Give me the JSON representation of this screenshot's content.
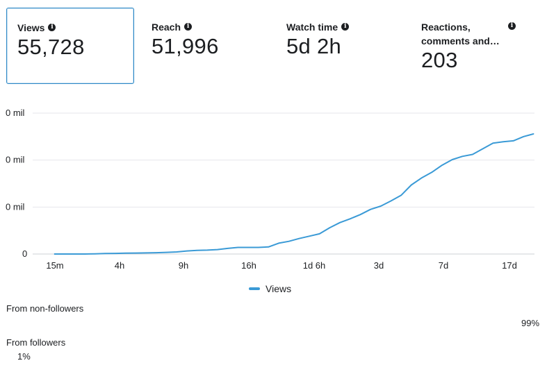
{
  "metrics": [
    {
      "label": "Views",
      "value": "55,728",
      "active": true
    },
    {
      "label": "Reach",
      "value": "51,996",
      "active": false
    },
    {
      "label": "Watch time",
      "value": "5d 2h",
      "active": false
    },
    {
      "label": "Reactions, comments and…",
      "value": "203",
      "active": false
    }
  ],
  "info_icon": "info-circle-icon",
  "legend": {
    "label": "Views"
  },
  "breakdown": {
    "non_followers": {
      "label": "From non-followers",
      "percent": "99%"
    },
    "followers": {
      "label": "From followers",
      "percent": "1%"
    }
  },
  "colors": {
    "accent": "#2d88c6",
    "line": "#3a9ad6",
    "grid": "#e4e6eb"
  },
  "chart_data": {
    "type": "line",
    "ytick_labels": [
      "0",
      "0 mil",
      "0 mil",
      "0 mil"
    ],
    "xtick_labels": [
      "15m",
      "4h",
      "9h",
      "16h",
      "1d 6h",
      "3d",
      "7d",
      "17d"
    ],
    "grid": true,
    "series": [
      {
        "name": "Views",
        "color": "#3a9ad6",
        "values": [
          0,
          0,
          0,
          0,
          50,
          100,
          130,
          170,
          200,
          230,
          280,
          350,
          450,
          650,
          770,
          830,
          950,
          1200,
          1400,
          1400,
          1400,
          1500,
          2300,
          2700,
          3300,
          3800,
          4300,
          5600,
          6700,
          7500,
          8400,
          9500,
          10200,
          11300,
          12500,
          14700,
          16200,
          17400,
          18900,
          20100,
          20800,
          21200,
          22400,
          23600,
          23900,
          24100,
          25000,
          25600
        ]
      }
    ],
    "x_positions_note": "",
    "ylim": [
      0,
      30000
    ]
  }
}
